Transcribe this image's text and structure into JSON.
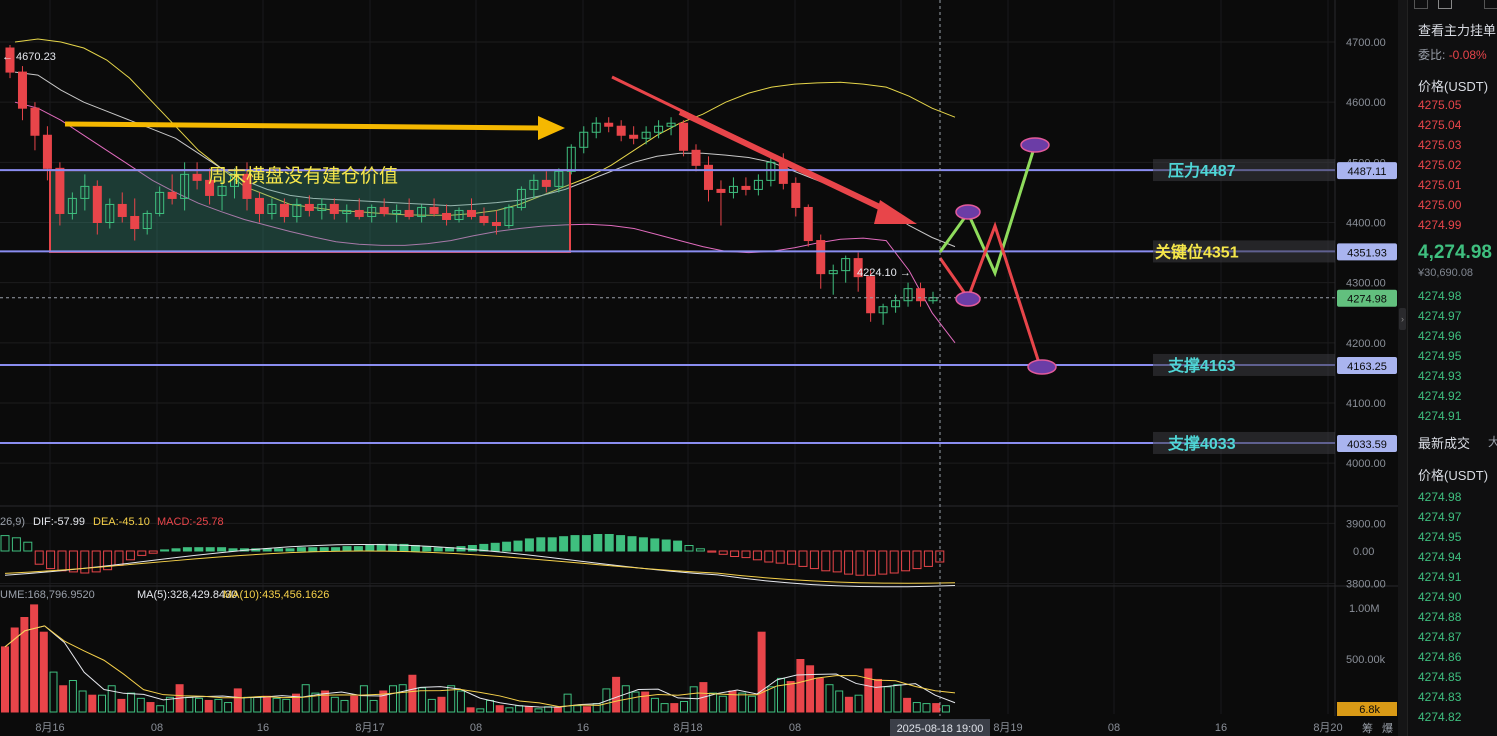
{
  "chart_data": {
    "type": "candlestick",
    "price_axis": {
      "ticks": [
        4700,
        4600,
        4500,
        4400,
        4300,
        4200,
        4100,
        4000,
        3900,
        3800
      ],
      "ylim": [
        3740,
        4740
      ]
    },
    "x_axis": {
      "labels": [
        "8月16",
        "08",
        "16",
        "8月17",
        "08",
        "16",
        "8月18",
        "08",
        "16",
        "8月19",
        "08",
        "16",
        "8月20"
      ]
    },
    "crosshair_time": "2025-08-18 19:00",
    "candles": [
      [
        4690,
        4695,
        4640,
        4650
      ],
      [
        4650,
        4660,
        4570,
        4590
      ],
      [
        4590,
        4600,
        4520,
        4545
      ],
      [
        4545,
        4560,
        4470,
        4490
      ],
      [
        4490,
        4500,
        4395,
        4415
      ],
      [
        4415,
        4450,
        4405,
        4440
      ],
      [
        4440,
        4480,
        4420,
        4460
      ],
      [
        4460,
        4470,
        4380,
        4400
      ],
      [
        4400,
        4440,
        4390,
        4430
      ],
      [
        4430,
        4450,
        4400,
        4410
      ],
      [
        4410,
        4440,
        4370,
        4390
      ],
      [
        4390,
        4420,
        4380,
        4415
      ],
      [
        4415,
        4460,
        4410,
        4450
      ],
      [
        4450,
        4480,
        4430,
        4440
      ],
      [
        4440,
        4500,
        4420,
        4480
      ],
      [
        4480,
        4500,
        4455,
        4470
      ],
      [
        4470,
        4490,
        4430,
        4445
      ],
      [
        4445,
        4470,
        4420,
        4460
      ],
      [
        4460,
        4490,
        4440,
        4480
      ],
      [
        4480,
        4500,
        4420,
        4440
      ],
      [
        4440,
        4450,
        4400,
        4415
      ],
      [
        4415,
        4440,
        4405,
        4430
      ],
      [
        4430,
        4440,
        4400,
        4410
      ],
      [
        4410,
        4440,
        4400,
        4430
      ],
      [
        4430,
        4445,
        4410,
        4420
      ],
      [
        4420,
        4440,
        4405,
        4430
      ],
      [
        4430,
        4440,
        4405,
        4415
      ],
      [
        4415,
        4430,
        4400,
        4420
      ],
      [
        4420,
        4440,
        4405,
        4410
      ],
      [
        4410,
        4430,
        4400,
        4425
      ],
      [
        4425,
        4440,
        4410,
        4415
      ],
      [
        4415,
        4430,
        4400,
        4420
      ],
      [
        4420,
        4440,
        4405,
        4410
      ],
      [
        4410,
        4430,
        4400,
        4425
      ],
      [
        4425,
        4440,
        4410,
        4415
      ],
      [
        4415,
        4430,
        4395,
        4405
      ],
      [
        4405,
        4425,
        4400,
        4420
      ],
      [
        4420,
        4440,
        4405,
        4410
      ],
      [
        4410,
        4425,
        4395,
        4400
      ],
      [
        4400,
        4420,
        4380,
        4395
      ],
      [
        4395,
        4430,
        4390,
        4425
      ],
      [
        4425,
        4460,
        4420,
        4455
      ],
      [
        4455,
        4480,
        4440,
        4470
      ],
      [
        4470,
        4485,
        4450,
        4460
      ],
      [
        4460,
        4490,
        4450,
        4485
      ],
      [
        4485,
        4530,
        4480,
        4525
      ],
      [
        4525,
        4560,
        4515,
        4550
      ],
      [
        4550,
        4575,
        4540,
        4565
      ],
      [
        4565,
        4575,
        4550,
        4560
      ],
      [
        4560,
        4570,
        4535,
        4545
      ],
      [
        4545,
        4560,
        4530,
        4540
      ],
      [
        4540,
        4560,
        4530,
        4550
      ],
      [
        4550,
        4570,
        4540,
        4560
      ],
      [
        4560,
        4575,
        4545,
        4565
      ],
      [
        4565,
        4570,
        4510,
        4520
      ],
      [
        4520,
        4530,
        4485,
        4495
      ],
      [
        4495,
        4510,
        4435,
        4455
      ],
      [
        4455,
        4470,
        4395,
        4450
      ],
      [
        4450,
        4475,
        4440,
        4460
      ],
      [
        4460,
        4475,
        4445,
        4455
      ],
      [
        4455,
        4480,
        4445,
        4470
      ],
      [
        4470,
        4510,
        4460,
        4500
      ],
      [
        4500,
        4515,
        4455,
        4465
      ],
      [
        4465,
        4475,
        4410,
        4425
      ],
      [
        4425,
        4430,
        4360,
        4370
      ],
      [
        4370,
        4380,
        4290,
        4315
      ],
      [
        4315,
        4330,
        4280,
        4320
      ],
      [
        4320,
        4345,
        4300,
        4340
      ],
      [
        4340,
        4350,
        4285,
        4310
      ],
      [
        4310,
        4320,
        4235,
        4250
      ],
      [
        4250,
        4265,
        4230,
        4260
      ],
      [
        4260,
        4280,
        4250,
        4270
      ],
      [
        4270,
        4300,
        4260,
        4290
      ],
      [
        4290,
        4300,
        4260,
        4270
      ],
      [
        4270,
        4285,
        4265,
        4275
      ]
    ],
    "ma_series": [
      {
        "color": "#e6d64a",
        "values": [
          4700,
          4705,
          4700,
          4690,
          4670,
          4640,
          4600,
          4560,
          4520,
          4490,
          4460,
          4445,
          4430,
          4425,
          4420,
          4418,
          4415,
          4413,
          4412,
          4412,
          4415,
          4420,
          4430,
          4445,
          4460,
          4475,
          4495,
          4520,
          4545,
          4565,
          4580,
          4600,
          4615,
          4625,
          4630,
          4632,
          4633,
          4630,
          4625,
          4610,
          4590,
          4575
        ]
      },
      {
        "color": "#e06bbd",
        "values": [
          4600,
          4590,
          4570,
          4545,
          4520,
          4495,
          4470,
          4450,
          4432,
          4418,
          4405,
          4395,
          4385,
          4376,
          4368,
          4364,
          4362,
          4362,
          4365,
          4370,
          4378,
          4385,
          4390,
          4394,
          4396,
          4397,
          4395,
          4390,
          4380,
          4370,
          4360,
          4352,
          4350,
          4352,
          4358,
          4366,
          4372,
          4374,
          4370,
          4320,
          4250,
          4200
        ]
      },
      {
        "color": "#c8c8c8",
        "values": [
          4650,
          4645,
          4620,
          4600,
          4585,
          4570,
          4555,
          4540,
          4515,
          4490,
          4470,
          4455,
          4445,
          4440,
          4438,
          4436,
          4434,
          4432,
          4430,
          4428,
          4430,
          4433,
          4437,
          4445,
          4455,
          4470,
          4485,
          4500,
          4510,
          4515,
          4515,
          4512,
          4508,
          4500,
          4485,
          4470,
          4455,
          4440,
          4420,
          4395,
          4375,
          4360
        ]
      }
    ],
    "last_price": 4274.98,
    "high_marker": "← 4670.23",
    "low_marker": "4224.10 →",
    "levels": [
      {
        "name": "压力4487",
        "axis_label": "4487.11",
        "value": 4487.11,
        "name_color": "#4fd6d6"
      },
      {
        "name": "关键位4351",
        "axis_label": "4351.93",
        "value": 4351.93,
        "name_color": "#f5e64a"
      },
      {
        "name": "支撑4163",
        "axis_label": "4163.25",
        "value": 4163.25,
        "name_color": "#4fd6d6"
      },
      {
        "name": "支撑4033",
        "axis_label": "4033.59",
        "value": 4033.59,
        "name_color": "#4fd6d6"
      }
    ],
    "annotation": "周末横盘没有建仓价值",
    "macd": {
      "label_prefix": "26,9)",
      "dif": "DIF:-57.99",
      "dea": "DEA:-45.10",
      "macd": "MACD:-25.78",
      "tick": "0.00",
      "hist": [
        14,
        12,
        8,
        -12,
        -16,
        -18,
        -19,
        -20,
        -19,
        -17,
        -13,
        -8,
        -4,
        -2,
        1,
        2,
        3,
        3,
        3,
        3,
        2,
        2,
        2,
        2,
        2,
        2,
        3,
        3,
        3,
        3,
        4,
        4,
        5,
        6,
        6,
        6,
        5,
        4,
        3,
        3,
        4,
        5,
        6,
        7,
        8,
        9,
        11,
        12,
        12,
        13,
        14,
        14,
        15,
        15,
        14,
        13,
        12,
        11,
        10,
        9,
        5,
        2,
        -1,
        -3,
        -5,
        -6,
        -8,
        -10,
        -11,
        -12,
        -14,
        -16,
        -18,
        -19,
        -21,
        -22,
        -22,
        -21,
        -20,
        -18,
        -16,
        -14,
        -10
      ]
    },
    "volume": {
      "label_prefix": "UME:168,796.9520",
      "ma5": "MA(5):328,429.8430",
      "ma10": "MA(10):435,456.1626",
      "ticks": [
        "1.00M",
        "500.00k"
      ],
      "current_label": "6.8k",
      "bars": [
        620,
        800,
        900,
        1020,
        760,
        380,
        250,
        300,
        200,
        160,
        160,
        250,
        120,
        180,
        130,
        90,
        60,
        140,
        260,
        140,
        130,
        110,
        120,
        90,
        220,
        140,
        140,
        150,
        130,
        120,
        170,
        260,
        180,
        200,
        140,
        110,
        150,
        250,
        110,
        200,
        250,
        260,
        350,
        230,
        120,
        140,
        250,
        200,
        40,
        30,
        110,
        60,
        40,
        60,
        50,
        30,
        50,
        40,
        170,
        60,
        50,
        80,
        220,
        330,
        250,
        190,
        190,
        130,
        80,
        80,
        100,
        240,
        280,
        180,
        150,
        200,
        180,
        150,
        760,
        240,
        320,
        290,
        500,
        440,
        320,
        260,
        200,
        140,
        160,
        410,
        310,
        240,
        260,
        130,
        90,
        80,
        80,
        60
      ]
    }
  },
  "sidebar": {
    "title": "查看主力挂单",
    "commission_label": "委比:",
    "commission_value": "-0.08%",
    "ask_header": "价格(USDT)",
    "asks": [
      "4275.05",
      "4275.04",
      "4275.03",
      "4275.02",
      "4275.01",
      "4275.00",
      "4274.99"
    ],
    "current_price": "4,274.98",
    "current_cny": "¥30,690.08",
    "bids": [
      "4274.98",
      "4274.97",
      "4274.96",
      "4274.95",
      "4274.93",
      "4274.92",
      "4274.91"
    ],
    "trades_title": "最新成交",
    "trades_tab2": "大",
    "trades_header": "价格(USDT)",
    "trades": [
      "4274.98",
      "4274.97",
      "4274.95",
      "4274.94",
      "4274.91",
      "4274.90",
      "4274.88",
      "4274.87",
      "4274.86",
      "4274.85",
      "4274.83",
      "4274.82"
    ]
  },
  "bottom_bar": {
    "icon1": "筹",
    "icon2": "爆"
  }
}
